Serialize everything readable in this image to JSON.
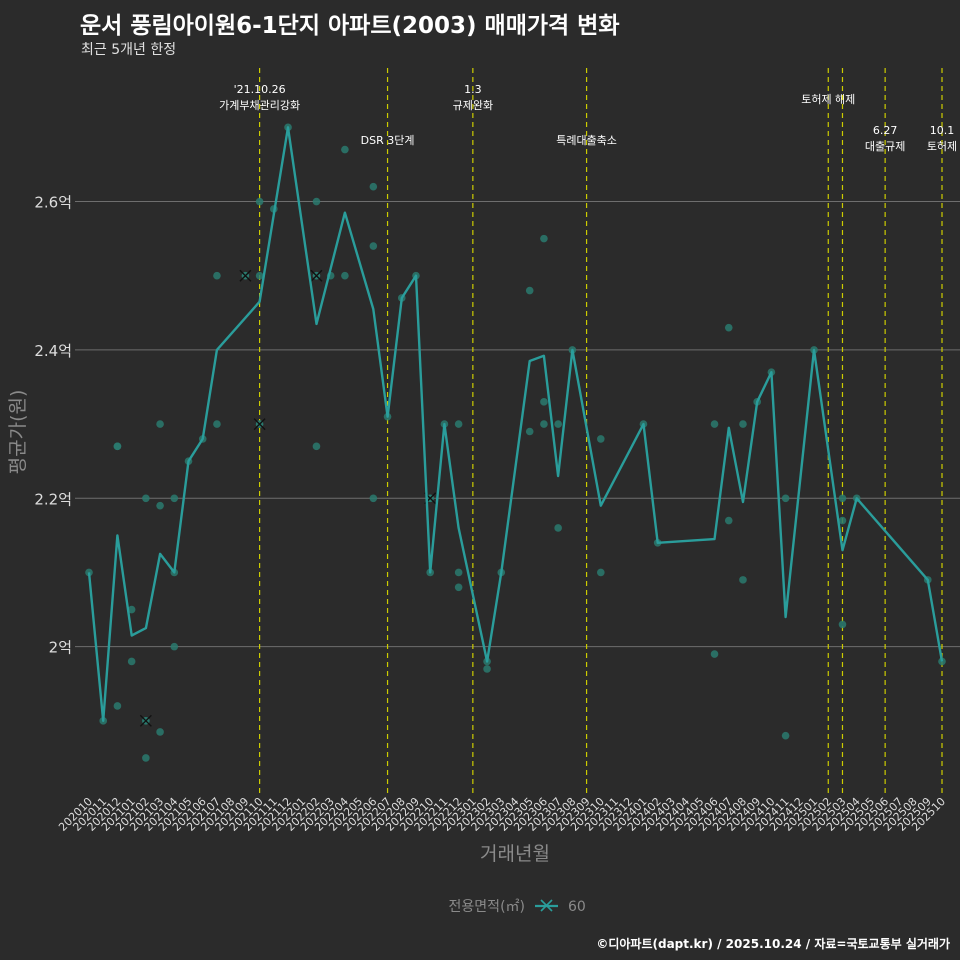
{
  "header": {
    "title": "운서 풍림아이원6-1단지 아파트(2003) 매매가격 변화",
    "subtitle": "최근 5개년 한정"
  },
  "footer": {
    "caption": "©디아파트(dapt.kr) / 2025.10.24 / 자료=국토교통부 실거래가"
  },
  "colors": {
    "background": "#2b2b2b",
    "line": "#2a9d9b",
    "point": "#2a7a6e",
    "vline": "#cccc00",
    "grid": "#6e6e6e",
    "text": "#dddddd",
    "axis_title": "#8a8a8a"
  },
  "chart_data": {
    "type": "line",
    "title": "운서 풍림아이원6-1단지 아파트(2003) 매매가격 변화",
    "xlabel": "거래년월",
    "ylabel": "평균가(원)",
    "ylim": [
      1.8,
      2.78
    ],
    "x": [
      "202010",
      "202011",
      "202012",
      "202101",
      "202102",
      "202103",
      "202104",
      "202105",
      "202106",
      "202107",
      "202108",
      "202109",
      "202110",
      "202111",
      "202112",
      "202201",
      "202202",
      "202203",
      "202204",
      "202205",
      "202206",
      "202207",
      "202208",
      "202209",
      "202210",
      "202211",
      "202212",
      "202301",
      "202302",
      "202303",
      "202304",
      "202305",
      "202306",
      "202307",
      "202308",
      "202309",
      "202310",
      "202311",
      "202312",
      "202401",
      "202402",
      "202403",
      "202404",
      "202405",
      "202406",
      "202407",
      "202408",
      "202409",
      "202410",
      "202411",
      "202412",
      "202501",
      "202502",
      "202503",
      "202504",
      "202505",
      "202506",
      "202507",
      "202508",
      "202509",
      "202510"
    ],
    "yticks": [
      {
        "value": 2.0,
        "label": "2억"
      },
      {
        "value": 2.2,
        "label": "2.2억"
      },
      {
        "value": 2.4,
        "label": "2.4억"
      },
      {
        "value": 2.6,
        "label": "2.6억"
      }
    ],
    "series": [
      {
        "name": "60",
        "points": [
          [
            0,
            2.1
          ],
          [
            1,
            1.9
          ],
          [
            2,
            2.15
          ],
          [
            3,
            2.015
          ],
          [
            4,
            2.025
          ],
          [
            5,
            2.125
          ],
          [
            6,
            2.1
          ],
          [
            7,
            2.25
          ],
          [
            8,
            2.28
          ],
          [
            9,
            2.4
          ],
          [
            12,
            2.465
          ],
          [
            14,
            2.7
          ],
          [
            16,
            2.435
          ],
          [
            18,
            2.585
          ],
          [
            20,
            2.455
          ],
          [
            21,
            2.31
          ],
          [
            22,
            2.47
          ],
          [
            23,
            2.5
          ],
          [
            24,
            2.1
          ],
          [
            25,
            2.3
          ],
          [
            26,
            2.16
          ],
          [
            28,
            1.98
          ],
          [
            29,
            2.1
          ],
          [
            31,
            2.385
          ],
          [
            32,
            2.392
          ],
          [
            33,
            2.23
          ],
          [
            34,
            2.4
          ],
          [
            36,
            2.19
          ],
          [
            39,
            2.3
          ],
          [
            40,
            2.14
          ],
          [
            44,
            2.145
          ],
          [
            45,
            2.295
          ],
          [
            46,
            2.195
          ],
          [
            47,
            2.33
          ],
          [
            48,
            2.37
          ],
          [
            49,
            2.04
          ],
          [
            51,
            2.4
          ],
          [
            53,
            2.13
          ],
          [
            54,
            2.2
          ],
          [
            59,
            2.09
          ],
          [
            60,
            1.98
          ]
        ]
      }
    ],
    "scatter_points": [
      [
        0,
        2.1
      ],
      [
        1,
        1.9
      ],
      [
        2,
        2.27
      ],
      [
        2,
        2.27
      ],
      [
        2,
        1.92
      ],
      [
        3,
        2.05
      ],
      [
        3,
        1.98
      ],
      [
        4,
        2.2
      ],
      [
        4,
        1.85
      ],
      [
        5,
        2.3
      ],
      [
        5,
        2.19
      ],
      [
        5,
        1.885
      ],
      [
        6,
        2.2
      ],
      [
        6,
        2.1
      ],
      [
        6,
        2.0
      ],
      [
        7,
        2.25
      ],
      [
        8,
        2.28
      ],
      [
        9,
        2.5
      ],
      [
        9,
        2.3
      ],
      [
        12,
        2.6
      ],
      [
        12,
        2.5
      ],
      [
        13,
        2.59
      ],
      [
        14,
        2.7
      ],
      [
        16,
        2.6
      ],
      [
        16,
        2.27
      ],
      [
        17,
        2.5
      ],
      [
        18,
        2.67
      ],
      [
        18,
        2.5
      ],
      [
        20,
        2.62
      ],
      [
        20,
        2.54
      ],
      [
        20,
        2.2
      ],
      [
        21,
        2.31
      ],
      [
        22,
        2.47
      ],
      [
        23,
        2.5
      ],
      [
        24,
        2.1
      ],
      [
        25,
        2.3
      ],
      [
        26,
        2.3
      ],
      [
        26,
        2.1
      ],
      [
        26,
        2.08
      ],
      [
        28,
        1.98
      ],
      [
        28,
        1.97
      ],
      [
        29,
        2.1
      ],
      [
        31,
        2.48
      ],
      [
        31,
        2.29
      ],
      [
        32,
        2.55
      ],
      [
        32,
        2.33
      ],
      [
        32,
        2.3
      ],
      [
        33,
        2.3
      ],
      [
        33,
        2.16
      ],
      [
        34,
        2.4
      ],
      [
        36,
        2.28
      ],
      [
        36,
        2.1
      ],
      [
        39,
        2.3
      ],
      [
        40,
        2.14
      ],
      [
        44,
        2.3
      ],
      [
        44,
        1.99
      ],
      [
        45,
        2.43
      ],
      [
        45,
        2.17
      ],
      [
        46,
        2.3
      ],
      [
        46,
        2.09
      ],
      [
        47,
        2.33
      ],
      [
        48,
        2.37
      ],
      [
        49,
        2.2
      ],
      [
        49,
        1.88
      ],
      [
        51,
        2.4
      ],
      [
        53,
        2.2
      ],
      [
        53,
        2.17
      ],
      [
        53,
        2.03
      ],
      [
        54,
        2.2
      ],
      [
        59,
        2.09
      ],
      [
        60,
        1.98
      ]
    ],
    "cancelled_points": [
      [
        4,
        1.9
      ],
      [
        11,
        2.5
      ],
      [
        12,
        2.3
      ],
      [
        16,
        2.5
      ],
      [
        24,
        2.2
      ]
    ],
    "events": [
      {
        "index": 12,
        "lines": [
          "'21.10.26",
          "가계부채관리강화"
        ],
        "row": 0
      },
      {
        "index": 21,
        "lines": [
          "DSR 3단계"
        ],
        "row": 1
      },
      {
        "index": 27,
        "lines": [
          "1.3",
          "규제완화"
        ],
        "row": 0
      },
      {
        "index": 35,
        "lines": [
          "특례대출축소"
        ],
        "row": 1
      },
      {
        "index": 52,
        "lines": [
          "토허제 해제"
        ],
        "row": 0
      },
      {
        "index": 53,
        "lines": [],
        "row": 0
      },
      {
        "index": 56,
        "lines": [
          "6.27",
          "대출규제"
        ],
        "row": 1
      },
      {
        "index": 60,
        "lines": [
          "10.1",
          "토허제"
        ],
        "row": 1
      }
    ],
    "legend": {
      "title": "전용면적(㎡)",
      "label": "60",
      "position": "bottom"
    }
  }
}
